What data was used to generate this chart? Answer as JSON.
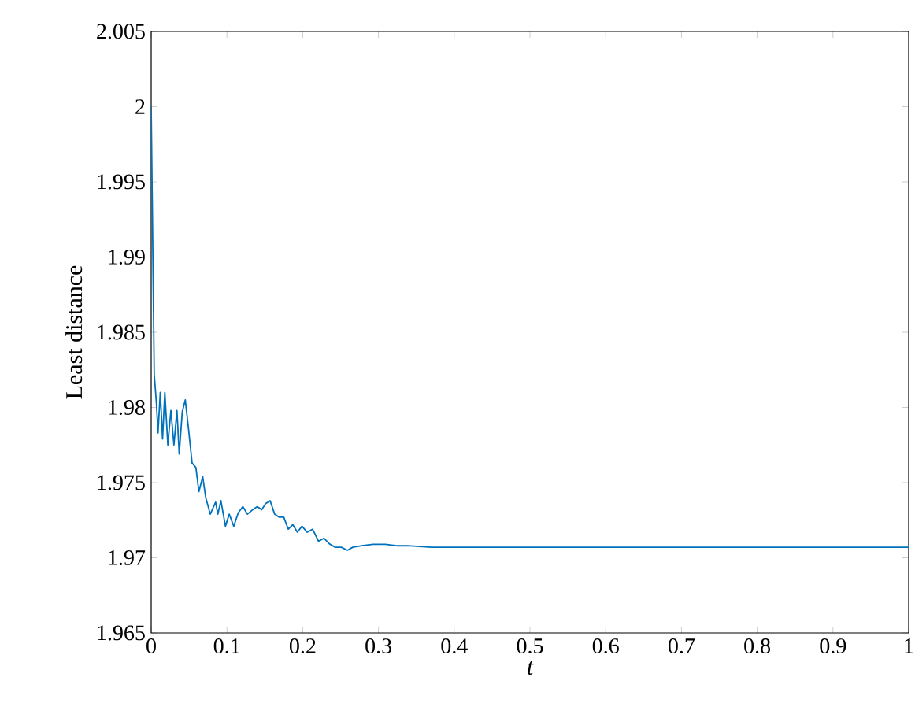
{
  "chart_data": {
    "type": "line",
    "xlabel": "t",
    "ylabel": "Least distance",
    "xlim": [
      0,
      1
    ],
    "ylim": [
      1.965,
      2.005
    ],
    "xticks": [
      0,
      0.1,
      0.2,
      0.3,
      0.4,
      0.5,
      0.6,
      0.7,
      0.8,
      0.9,
      1
    ],
    "yticks": [
      1.965,
      1.97,
      1.975,
      1.98,
      1.985,
      1.99,
      1.995,
      2,
      2.005
    ],
    "grid": false,
    "marker": "none",
    "line_style": "solid",
    "series": [
      {
        "color": "#0072bd",
        "x": [
          0,
          0.004,
          0.007,
          0.009,
          0.012,
          0.015,
          0.018,
          0.022,
          0.026,
          0.03,
          0.034,
          0.037,
          0.041,
          0.045,
          0.049,
          0.054,
          0.059,
          0.063,
          0.068,
          0.072,
          0.078,
          0.085,
          0.088,
          0.092,
          0.098,
          0.103,
          0.109,
          0.115,
          0.121,
          0.127,
          0.134,
          0.14,
          0.146,
          0.151,
          0.157,
          0.163,
          0.169,
          0.175,
          0.181,
          0.187,
          0.193,
          0.199,
          0.206,
          0.213,
          0.221,
          0.228,
          0.236,
          0.243,
          0.251,
          0.259,
          0.266,
          0.278,
          0.293,
          0.309,
          0.324,
          0.339,
          0.37,
          0.416,
          0.57,
          0.8,
          1.0
        ],
        "values": [
          2.0,
          1.9822,
          1.9802,
          1.9783,
          1.981,
          1.9779,
          1.981,
          1.9775,
          1.9798,
          1.9775,
          1.9798,
          1.9769,
          1.9797,
          1.9805,
          1.9787,
          1.9763,
          1.976,
          1.9744,
          1.9754,
          1.974,
          1.9729,
          1.9737,
          1.9729,
          1.9738,
          1.9721,
          1.9729,
          1.9721,
          1.973,
          1.9734,
          1.9729,
          1.9732,
          1.9734,
          1.9732,
          1.9736,
          1.9738,
          1.9729,
          1.9727,
          1.9727,
          1.9719,
          1.9722,
          1.9717,
          1.9721,
          1.9717,
          1.9719,
          1.9711,
          1.9713,
          1.9709,
          1.9707,
          1.9707,
          1.9705,
          1.9707,
          1.9708,
          1.9709,
          1.9709,
          1.9708,
          1.9708,
          1.9707,
          1.9707,
          1.9707,
          1.9707,
          1.9707
        ]
      }
    ]
  }
}
